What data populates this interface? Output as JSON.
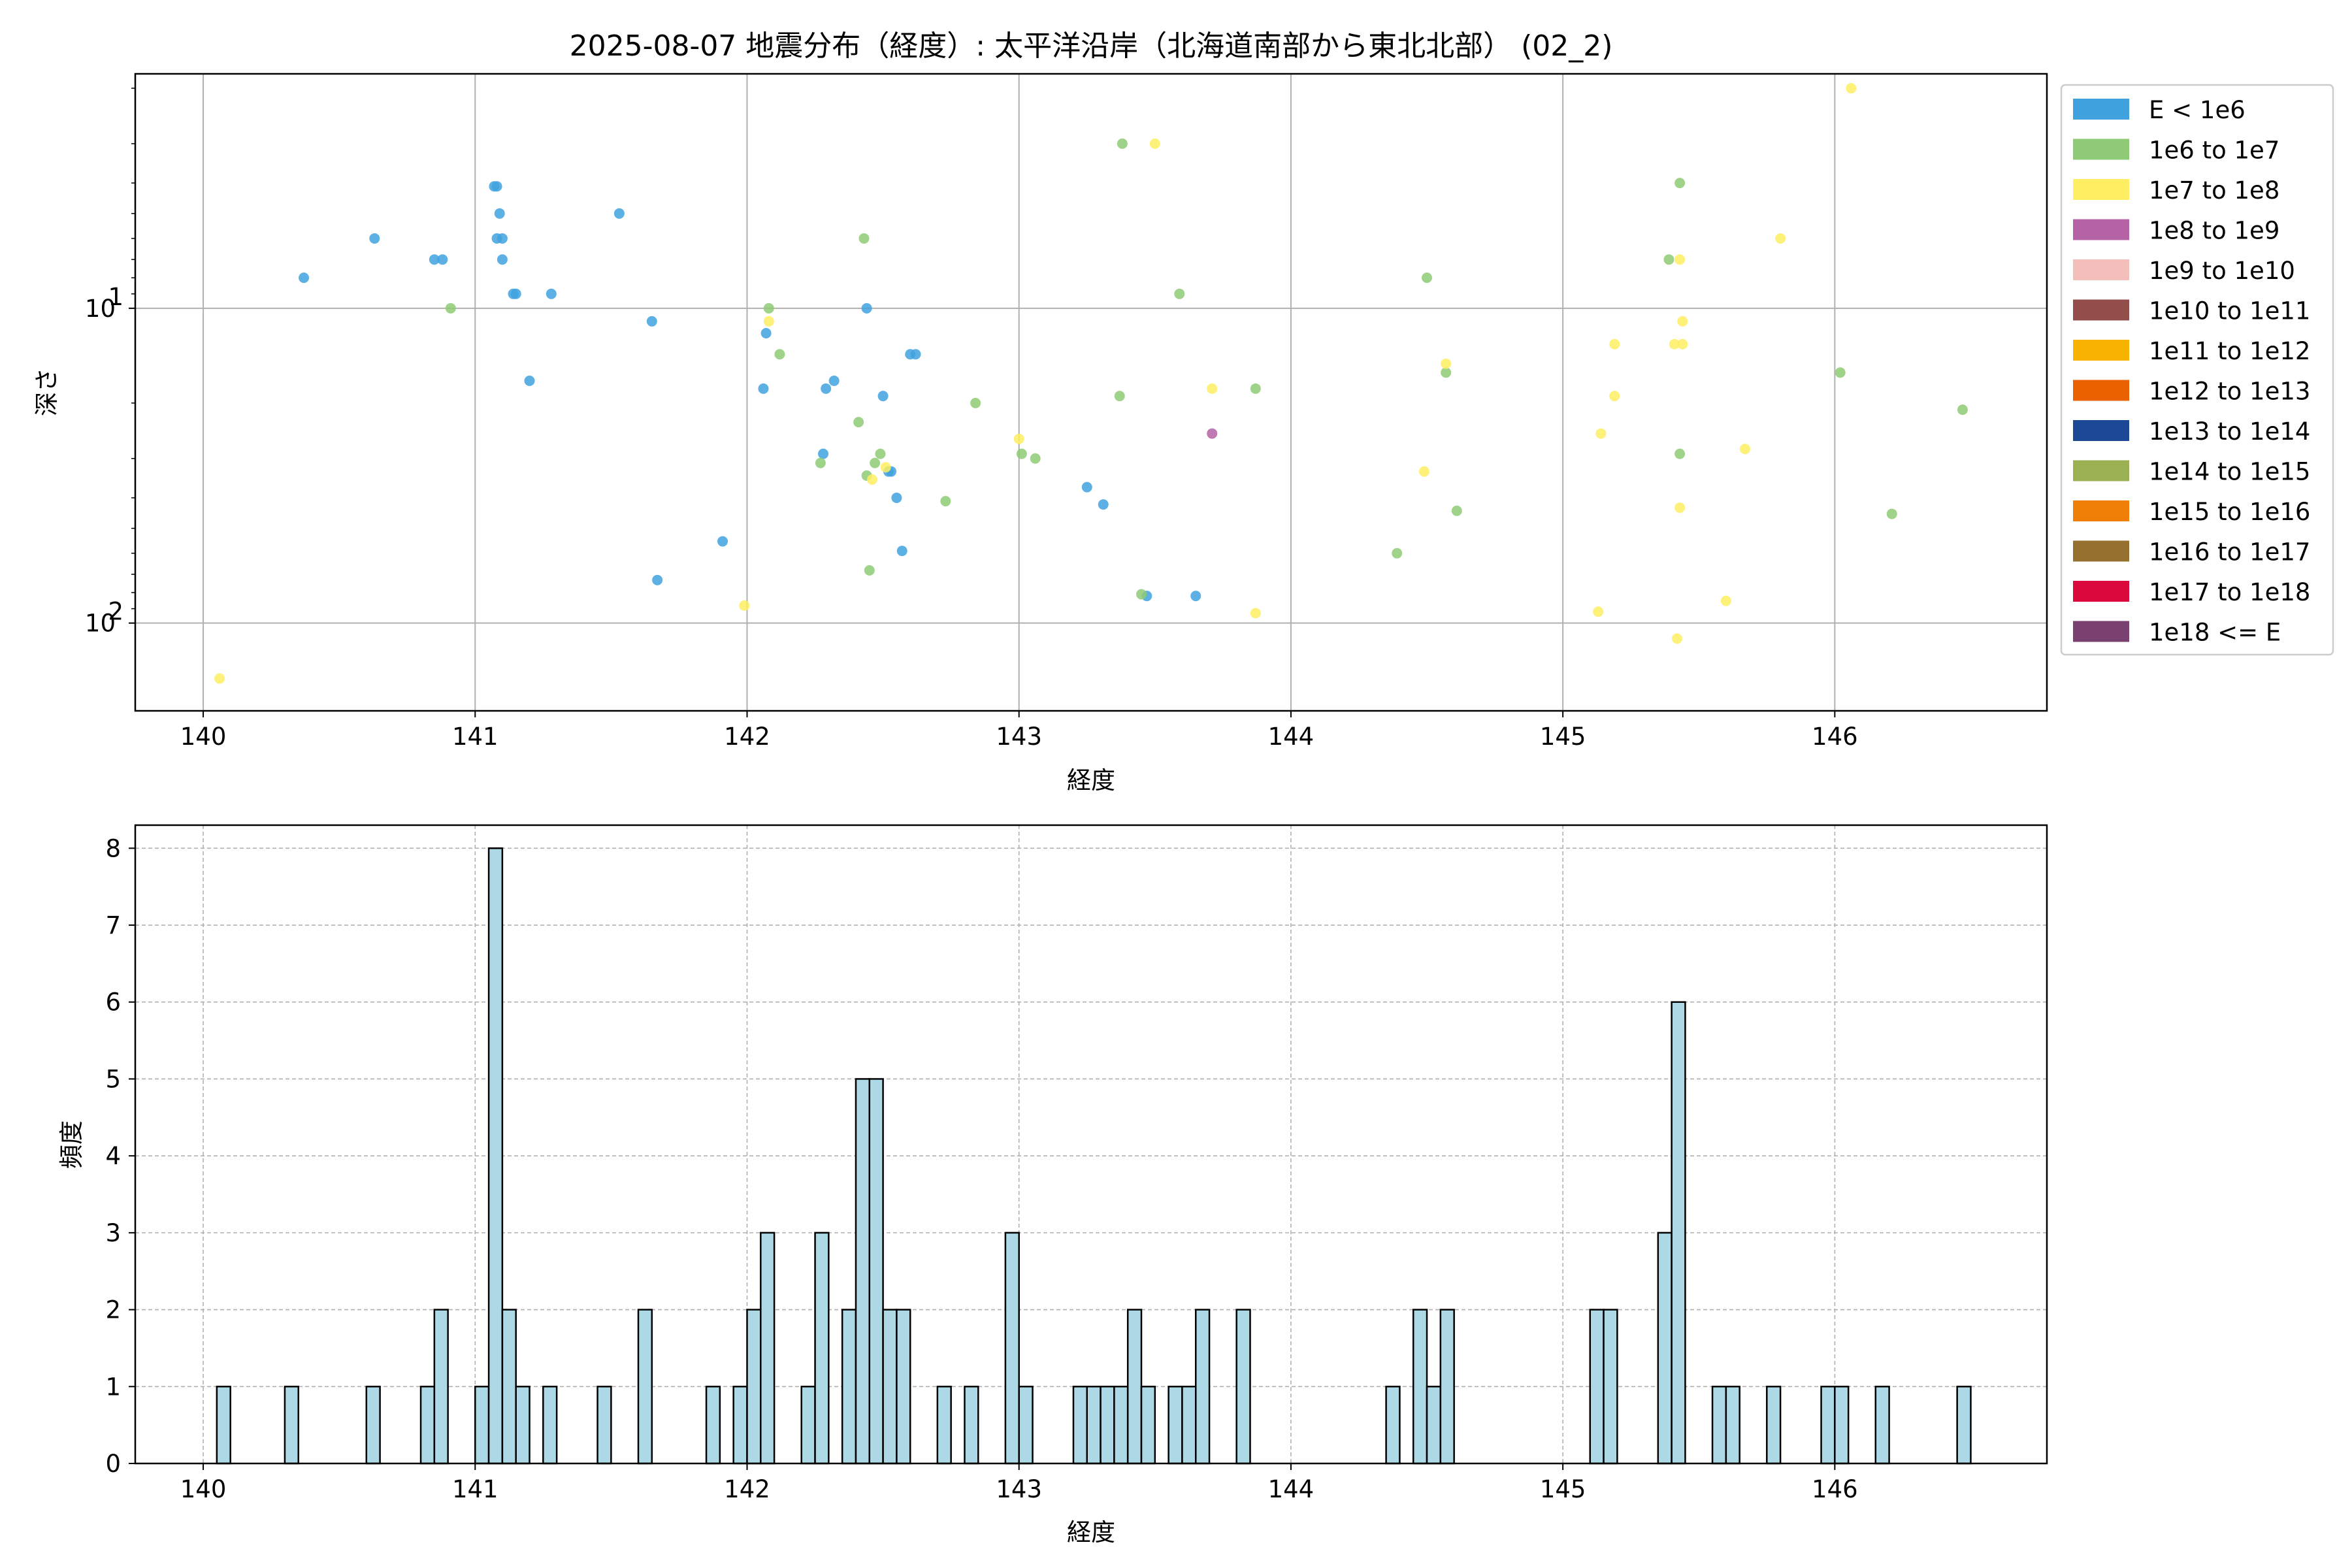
{
  "chart_data": [
    {
      "type": "scatter",
      "title": "2025-08-07 地震分布（経度）: 太平洋沿岸（北海道南部から東北北部） (02_2)",
      "xlabel": "経度",
      "ylabel": "深さ",
      "xlim": [
        139.75,
        146.78
      ],
      "ylim": [
        190,
        1.8
      ],
      "yscale": "log",
      "yaxis_inverted": true,
      "xticks": [
        "140",
        "141",
        "142",
        "143",
        "144",
        "145",
        "146"
      ],
      "yticks": [
        {
          "label": "10",
          "sup": "1",
          "value": 10
        },
        {
          "label": "10",
          "sup": "2",
          "value": 100
        }
      ],
      "grid": true,
      "legend_position": "outside right",
      "legend": [
        {
          "label": "E < 1e6",
          "color": "#3fa2df"
        },
        {
          "label": "1e6 to 1e7",
          "color": "#8fcb76"
        },
        {
          "label": "1e7 to 1e8",
          "color": "#fdee62"
        },
        {
          "label": "1e8 to 1e9",
          "color": "#b563a6"
        },
        {
          "label": "1e9 to 1e10",
          "color": "#f4bebb"
        },
        {
          "label": "1e10 to 1e11",
          "color": "#934e4c"
        },
        {
          "label": "1e11 to 1e12",
          "color": "#f8b200"
        },
        {
          "label": "1e12 to 1e13",
          "color": "#ea6100"
        },
        {
          "label": "1e13 to 1e14",
          "color": "#1c4996"
        },
        {
          "label": "1e14 to 1e15",
          "color": "#9baf53"
        },
        {
          "label": "1e15 to 1e16",
          "color": "#f07f07"
        },
        {
          "label": "1e16 to 1e17",
          "color": "#95702f"
        },
        {
          "label": "1e17 to 1e18",
          "color": "#da083c"
        },
        {
          "label": "1e18 <= E",
          "color": "#7a4170"
        }
      ],
      "series": [
        {
          "name": "E < 1e6",
          "color": "#3fa2df",
          "points": [
            [
              140.37,
              8
            ],
            [
              140.63,
              6
            ],
            [
              140.85,
              7
            ],
            [
              140.88,
              7
            ],
            [
              141.07,
              4.1
            ],
            [
              141.08,
              4.1
            ],
            [
              141.08,
              6
            ],
            [
              141.09,
              5
            ],
            [
              141.1,
              6
            ],
            [
              141.1,
              7
            ],
            [
              141.14,
              9
            ],
            [
              141.15,
              9
            ],
            [
              141.28,
              9
            ],
            [
              141.2,
              17
            ],
            [
              141.53,
              5
            ],
            [
              141.65,
              11
            ],
            [
              141.67,
              73
            ],
            [
              141.91,
              55
            ],
            [
              142.06,
              18
            ],
            [
              142.07,
              12
            ],
            [
              142.28,
              29
            ],
            [
              142.29,
              18
            ],
            [
              142.32,
              17
            ],
            [
              142.44,
              10
            ],
            [
              142.5,
              19
            ],
            [
              142.52,
              33
            ],
            [
              142.53,
              33
            ],
            [
              142.55,
              40
            ],
            [
              142.57,
              59
            ],
            [
              142.6,
              14
            ],
            [
              142.62,
              14
            ],
            [
              143.25,
              37
            ],
            [
              143.31,
              42
            ],
            [
              143.47,
              82
            ],
            [
              143.65,
              82
            ]
          ]
        },
        {
          "name": "1e6 to 1e7",
          "color": "#8fcb76",
          "points": [
            [
              140.91,
              10
            ],
            [
              142.08,
              10
            ],
            [
              142.12,
              14
            ],
            [
              142.27,
              31
            ],
            [
              142.41,
              23
            ],
            [
              142.43,
              6
            ],
            [
              142.44,
              34
            ],
            [
              142.45,
              68
            ],
            [
              142.47,
              31
            ],
            [
              142.49,
              29
            ],
            [
              142.73,
              41
            ],
            [
              142.84,
              20
            ],
            [
              143.01,
              29
            ],
            [
              143.06,
              30
            ],
            [
              143.38,
              3
            ],
            [
              143.37,
              19
            ],
            [
              143.45,
              81
            ],
            [
              143.59,
              9
            ],
            [
              143.87,
              18
            ],
            [
              144.39,
              60
            ],
            [
              144.5,
              8
            ],
            [
              144.57,
              16
            ],
            [
              144.61,
              44
            ],
            [
              145.39,
              7
            ],
            [
              145.43,
              4
            ],
            [
              145.43,
              29
            ],
            [
              146.02,
              16
            ],
            [
              146.21,
              45
            ],
            [
              146.47,
              21
            ]
          ]
        },
        {
          "name": "1e7 to 1e8",
          "color": "#fdee62",
          "points": [
            [
              140.06,
              150
            ],
            [
              141.99,
              88
            ],
            [
              142.08,
              11
            ],
            [
              142.46,
              35
            ],
            [
              142.51,
              32
            ],
            [
              143.0,
              26
            ],
            [
              143.5,
              3
            ],
            [
              143.71,
              18
            ],
            [
              143.87,
              93
            ],
            [
              144.49,
              33
            ],
            [
              144.57,
              15
            ],
            [
              145.14,
              25
            ],
            [
              145.13,
              92
            ],
            [
              145.19,
              13
            ],
            [
              145.19,
              19
            ],
            [
              145.41,
              13
            ],
            [
              145.44,
              13
            ],
            [
              145.44,
              11
            ],
            [
              145.43,
              7
            ],
            [
              145.43,
              43
            ],
            [
              145.42,
              112
            ],
            [
              145.6,
              85
            ],
            [
              145.67,
              28
            ],
            [
              145.8,
              6
            ],
            [
              146.06,
              2
            ]
          ]
        },
        {
          "name": "1e8 to 1e9",
          "color": "#b563a6",
          "points": [
            [
              143.71,
              25
            ]
          ]
        }
      ]
    },
    {
      "type": "bar",
      "xlabel": "経度",
      "ylabel": "頻度",
      "xlim": [
        139.75,
        146.78
      ],
      "ylim": [
        0,
        8.3
      ],
      "xticks": [
        "140",
        "141",
        "142",
        "143",
        "144",
        "145",
        "146"
      ],
      "yticks": [
        "0",
        "1",
        "2",
        "3",
        "4",
        "5",
        "6",
        "7",
        "8"
      ],
      "grid": "dashed",
      "bin_width": 0.05,
      "bars": [
        [
          140.05,
          1
        ],
        [
          140.3,
          1
        ],
        [
          140.6,
          1
        ],
        [
          140.8,
          1
        ],
        [
          140.85,
          2
        ],
        [
          141.0,
          1
        ],
        [
          141.05,
          8
        ],
        [
          141.1,
          2
        ],
        [
          141.15,
          1
        ],
        [
          141.25,
          1
        ],
        [
          141.45,
          1
        ],
        [
          141.6,
          2
        ],
        [
          141.85,
          1
        ],
        [
          141.95,
          1
        ],
        [
          142.0,
          2
        ],
        [
          142.05,
          3
        ],
        [
          142.2,
          1
        ],
        [
          142.25,
          3
        ],
        [
          142.35,
          2
        ],
        [
          142.4,
          5
        ],
        [
          142.45,
          5
        ],
        [
          142.5,
          2
        ],
        [
          142.55,
          2
        ],
        [
          142.7,
          1
        ],
        [
          142.8,
          1
        ],
        [
          142.95,
          3
        ],
        [
          143.0,
          1
        ],
        [
          143.2,
          1
        ],
        [
          143.25,
          1
        ],
        [
          143.3,
          1
        ],
        [
          143.35,
          1
        ],
        [
          143.4,
          2
        ],
        [
          143.45,
          1
        ],
        [
          143.55,
          1
        ],
        [
          143.6,
          1
        ],
        [
          143.65,
          2
        ],
        [
          143.8,
          2
        ],
        [
          144.35,
          1
        ],
        [
          144.45,
          2
        ],
        [
          144.5,
          1
        ],
        [
          144.55,
          2
        ],
        [
          145.1,
          2
        ],
        [
          145.15,
          2
        ],
        [
          145.35,
          3
        ],
        [
          145.4,
          6
        ],
        [
          145.55,
          1
        ],
        [
          145.6,
          1
        ],
        [
          145.75,
          1
        ],
        [
          145.95,
          1
        ],
        [
          146.0,
          1
        ],
        [
          146.15,
          1
        ],
        [
          146.45,
          1
        ]
      ]
    }
  ]
}
